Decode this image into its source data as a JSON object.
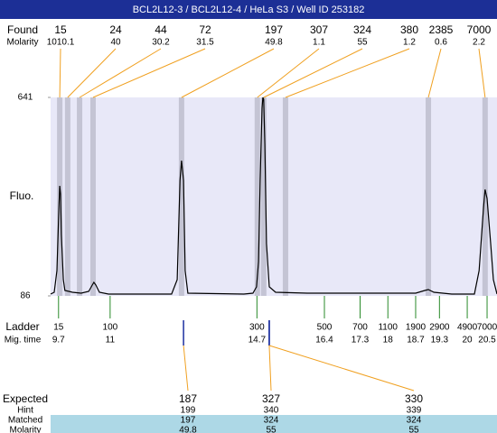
{
  "chart_data": {
    "type": "line",
    "title": "BCL2L12-3 / BCL2L12-4 / HeLa S3 / Well ID 253182",
    "ylabel": "Fluo.",
    "ylim": [
      86,
      641
    ],
    "yticks": [
      86,
      641
    ],
    "xlim": [
      9.5,
      20.75
    ],
    "plot_color": "#e8e8f8",
    "found_label": "Found",
    "molarity_label": "Molarity",
    "found": [
      {
        "size": 15,
        "molarity": 1010.1,
        "time": 9.73
      },
      {
        "size": 24,
        "molarity": 40,
        "time": 9.93
      },
      {
        "size": 44,
        "molarity": 30.2,
        "time": 10.23
      },
      {
        "size": 72,
        "molarity": 31.5,
        "time": 10.57
      },
      {
        "size": 197,
        "molarity": 49.8,
        "time": 12.8
      },
      {
        "size": 307,
        "molarity": 1.1,
        "time": 14.71
      },
      {
        "size": 324,
        "molarity": 55,
        "time": 14.87
      },
      {
        "size": 380,
        "molarity": 1.2,
        "time": 15.42
      },
      {
        "size": 2385,
        "molarity": 0.6,
        "time": 19.02
      },
      {
        "size": 7000,
        "molarity": 2.2,
        "time": 20.45
      }
    ],
    "series": [
      {
        "color": "#000000",
        "x": [
          9.5,
          9.59,
          9.66,
          9.71,
          9.73,
          9.75,
          9.77,
          9.82,
          9.86,
          9.96,
          10.05,
          10.27,
          10.46,
          10.55,
          10.59,
          10.64,
          10.73,
          10.96,
          12.55,
          12.69,
          12.76,
          12.8,
          12.85,
          12.89,
          12.96,
          14.37,
          14.6,
          14.69,
          14.74,
          14.78,
          14.83,
          14.85,
          14.87,
          14.9,
          14.94,
          15.01,
          15.17,
          15.97,
          18.7,
          18.93,
          19.02,
          19.16,
          19.61,
          20.18,
          20.3,
          20.41,
          20.45,
          20.5,
          20.59,
          20.66,
          20.75
        ],
        "values": [
          91,
          96.1,
          156.6,
          333.2,
          393.8,
          371.1,
          257.5,
          131.4,
          101.1,
          98.6,
          96.1,
          93.6,
          98.6,
          116.3,
          123.9,
          116.3,
          96.1,
          91,
          91,
          131.4,
          408.9,
          464.4,
          408.9,
          156.6,
          93.6,
          91,
          93.6,
          111.2,
          181.9,
          408.9,
          610.7,
          641,
          636,
          509.8,
          232.3,
          111.2,
          96.1,
          93.6,
          93.6,
          101.1,
          103.7,
          96.1,
          91,
          91,
          156.6,
          333.2,
          383.7,
          358.5,
          232.3,
          131.4,
          91
        ]
      }
    ],
    "ladder_label": "Ladder",
    "migtime_label": "Mig. time",
    "ladder": [
      {
        "size": 15,
        "time": 9.7
      },
      {
        "size": 100,
        "time": 11
      },
      {
        "size": 300,
        "time": 14.7
      },
      {
        "size": 500,
        "time": 16.4
      },
      {
        "size": 700,
        "time": 17.3
      },
      {
        "size": 1100,
        "time": 18
      },
      {
        "size": 1900,
        "time": 18.7
      },
      {
        "size": 2900,
        "time": 19.3
      },
      {
        "size": 4900,
        "time": 20
      },
      {
        "size": 7000,
        "time": 20.5
      }
    ],
    "expected_labels": [
      "Expected",
      "Hint",
      "Matched",
      "Molarity"
    ],
    "expected": [
      {
        "time": 12.85,
        "expected": 187,
        "hint": 199,
        "matched": 197,
        "molarity": 49.8
      },
      {
        "time": 15.01,
        "expected": 327,
        "hint": 340,
        "matched": 324,
        "molarity": 55
      },
      {
        "time": 15.01,
        "expected": 330,
        "hint": 339,
        "matched": 324,
        "molarity": 55
      }
    ]
  }
}
